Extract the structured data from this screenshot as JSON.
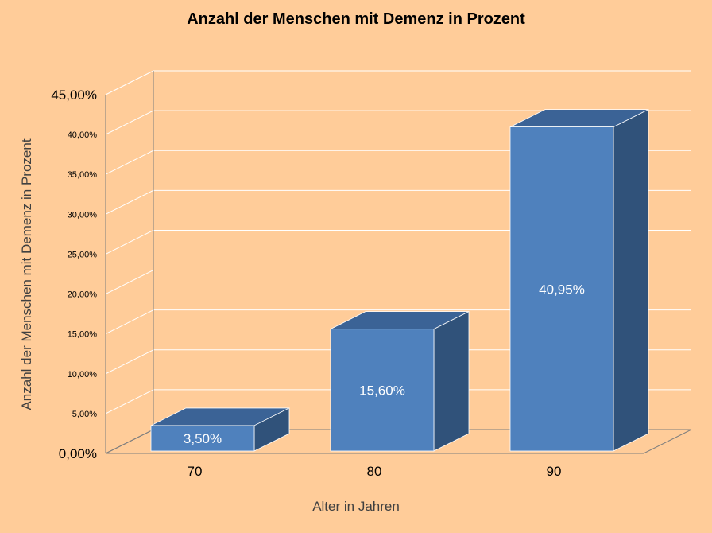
{
  "chart_data": {
    "type": "bar",
    "title": "Anzahl der Menschen mit Demenz in Prozent",
    "xlabel": "Alter in Jahren",
    "ylabel": "Anzahl der Menschen mit Demenz in Prozent",
    "categories": [
      "70",
      "80",
      "90"
    ],
    "values": [
      3.5,
      15.6,
      40.95
    ],
    "data_labels": [
      "3,50%",
      "15,60%",
      "40,95%"
    ],
    "ylim": [
      0,
      45
    ],
    "yticks": [
      {
        "value": 0,
        "label": "0,00%"
      },
      {
        "value": 5,
        "label": "5,00%"
      },
      {
        "value": 10,
        "label": "10,00%"
      },
      {
        "value": 15,
        "label": "15,00%"
      },
      {
        "value": 20,
        "label": "20,00%"
      },
      {
        "value": 25,
        "label": "25,00%"
      },
      {
        "value": 30,
        "label": "30,00%"
      },
      {
        "value": 35,
        "label": "35,00%"
      },
      {
        "value": 40,
        "label": "40,00%"
      },
      {
        "value": 45,
        "label": "45,00%"
      }
    ],
    "grid": true,
    "legend": "none",
    "three_d": true,
    "colors": {
      "background": "#ffcc99",
      "bar_front": "#4f81bd",
      "bar_top": "#3b6396",
      "bar_side": "#30527a",
      "grid": "#ffffff",
      "axis": "#7f7f7f"
    }
  }
}
